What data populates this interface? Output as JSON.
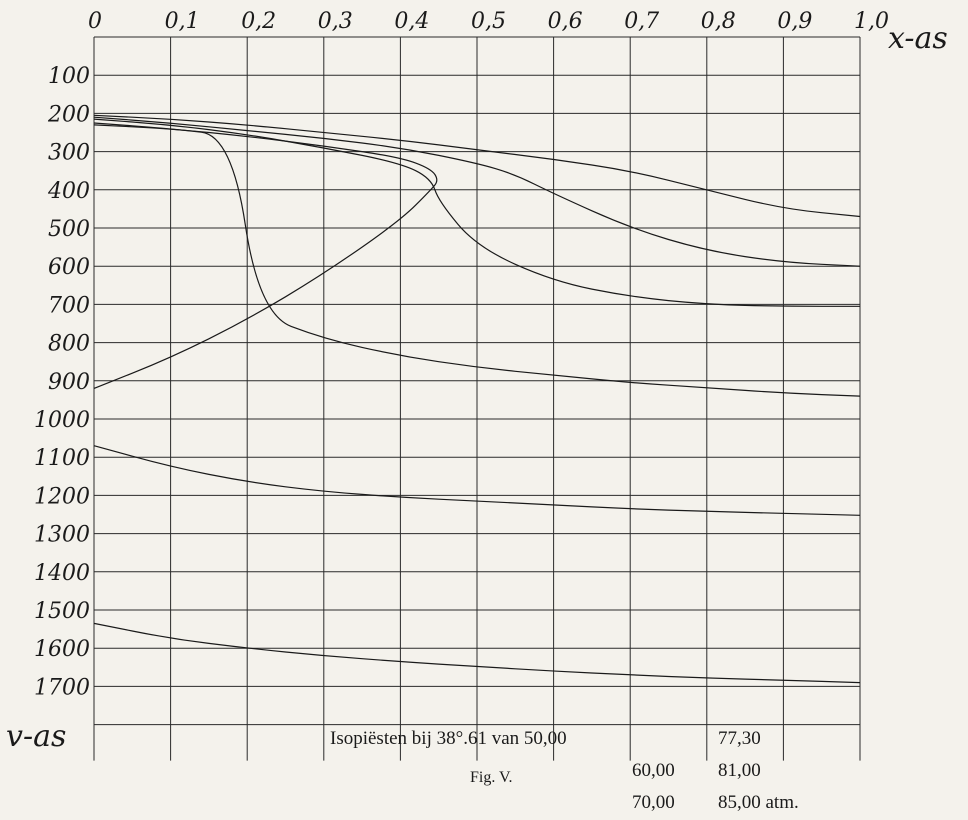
{
  "chart_data": {
    "type": "line",
    "xlabel": "x-as",
    "ylabel": "v-as",
    "x_ticks": [
      "0",
      "0,1",
      "0,2",
      "0,3",
      "0,4",
      "0,5",
      "0,6",
      "0,7",
      "0,8",
      "0,9",
      "1,0"
    ],
    "y_ticks": [
      "100",
      "200",
      "300",
      "400",
      "500",
      "600",
      "700",
      "800",
      "900",
      "1000",
      "1100",
      "1200",
      "1300",
      "1400",
      "1500",
      "1600",
      "1700"
    ],
    "xlim": [
      0,
      1.0
    ],
    "ylim": [
      0,
      1800
    ],
    "y_inverted": true,
    "grid": true,
    "series": [
      {
        "points": [
          [
            0,
            205
          ],
          [
            0.1,
            215
          ],
          [
            0.2,
            230
          ],
          [
            0.3,
            250
          ],
          [
            0.4,
            270
          ],
          [
            0.5,
            295
          ],
          [
            0.6,
            320
          ],
          [
            0.7,
            350
          ],
          [
            0.8,
            400
          ],
          [
            0.9,
            450
          ],
          [
            1.0,
            470
          ]
        ]
      },
      {
        "points": [
          [
            0,
            210
          ],
          [
            0.1,
            225
          ],
          [
            0.2,
            245
          ],
          [
            0.3,
            265
          ],
          [
            0.4,
            290
          ],
          [
            0.5,
            330
          ],
          [
            0.55,
            360
          ],
          [
            0.6,
            410
          ],
          [
            0.7,
            500
          ],
          [
            0.8,
            560
          ],
          [
            0.9,
            590
          ],
          [
            1.0,
            600
          ]
        ]
      },
      {
        "points": [
          [
            0,
            215
          ],
          [
            0.1,
            230
          ],
          [
            0.2,
            255
          ],
          [
            0.3,
            290
          ],
          [
            0.4,
            330
          ],
          [
            0.44,
            370
          ],
          [
            0.45,
            430
          ],
          [
            0.5,
            550
          ],
          [
            0.6,
            640
          ],
          [
            0.7,
            680
          ],
          [
            0.8,
            700
          ],
          [
            0.9,
            705
          ],
          [
            1.0,
            705
          ]
        ]
      },
      {
        "points": [
          [
            0,
            225
          ],
          [
            0.1,
            240
          ],
          [
            0.18,
            258
          ],
          [
            0.215,
            725
          ],
          [
            0.3,
            790
          ],
          [
            0.4,
            835
          ],
          [
            0.5,
            865
          ],
          [
            0.6,
            885
          ],
          [
            0.7,
            905
          ],
          [
            0.8,
            918
          ],
          [
            0.9,
            932
          ],
          [
            1.0,
            940
          ]
        ]
      },
      {
        "points": [
          [
            0,
            920
          ],
          [
            0.1,
            840
          ],
          [
            0.2,
            740
          ],
          [
            0.3,
            620
          ],
          [
            0.4,
            480
          ],
          [
            0.44,
            400
          ],
          [
            0.45,
            375
          ],
          [
            0.44,
            345
          ],
          [
            0.4,
            315
          ],
          [
            0.3,
            285
          ],
          [
            0.2,
            260
          ],
          [
            0.1,
            240
          ],
          [
            0,
            230
          ]
        ]
      },
      {
        "points": [
          [
            0,
            1070
          ],
          [
            0.1,
            1125
          ],
          [
            0.2,
            1165
          ],
          [
            0.3,
            1190
          ],
          [
            0.4,
            1205
          ],
          [
            0.5,
            1215
          ],
          [
            0.6,
            1225
          ],
          [
            0.7,
            1235
          ],
          [
            0.8,
            1242
          ],
          [
            0.9,
            1247
          ],
          [
            1.0,
            1252
          ]
        ]
      },
      {
        "points": [
          [
            0,
            1535
          ],
          [
            0.1,
            1575
          ],
          [
            0.2,
            1600
          ],
          [
            0.3,
            1620
          ],
          [
            0.4,
            1635
          ],
          [
            0.5,
            1648
          ],
          [
            0.6,
            1660
          ],
          [
            0.7,
            1670
          ],
          [
            0.8,
            1678
          ],
          [
            0.9,
            1684
          ],
          [
            1.0,
            1690
          ]
        ]
      }
    ],
    "caption": {
      "line1": "Isopiësten bij 38°.61 van 50,00",
      "col2_1": "77,30",
      "line2": "60,00",
      "col2_2": "81,00",
      "line3": "70,00",
      "col2_3": "85,00 atm.",
      "fig": "Fig. V."
    }
  }
}
